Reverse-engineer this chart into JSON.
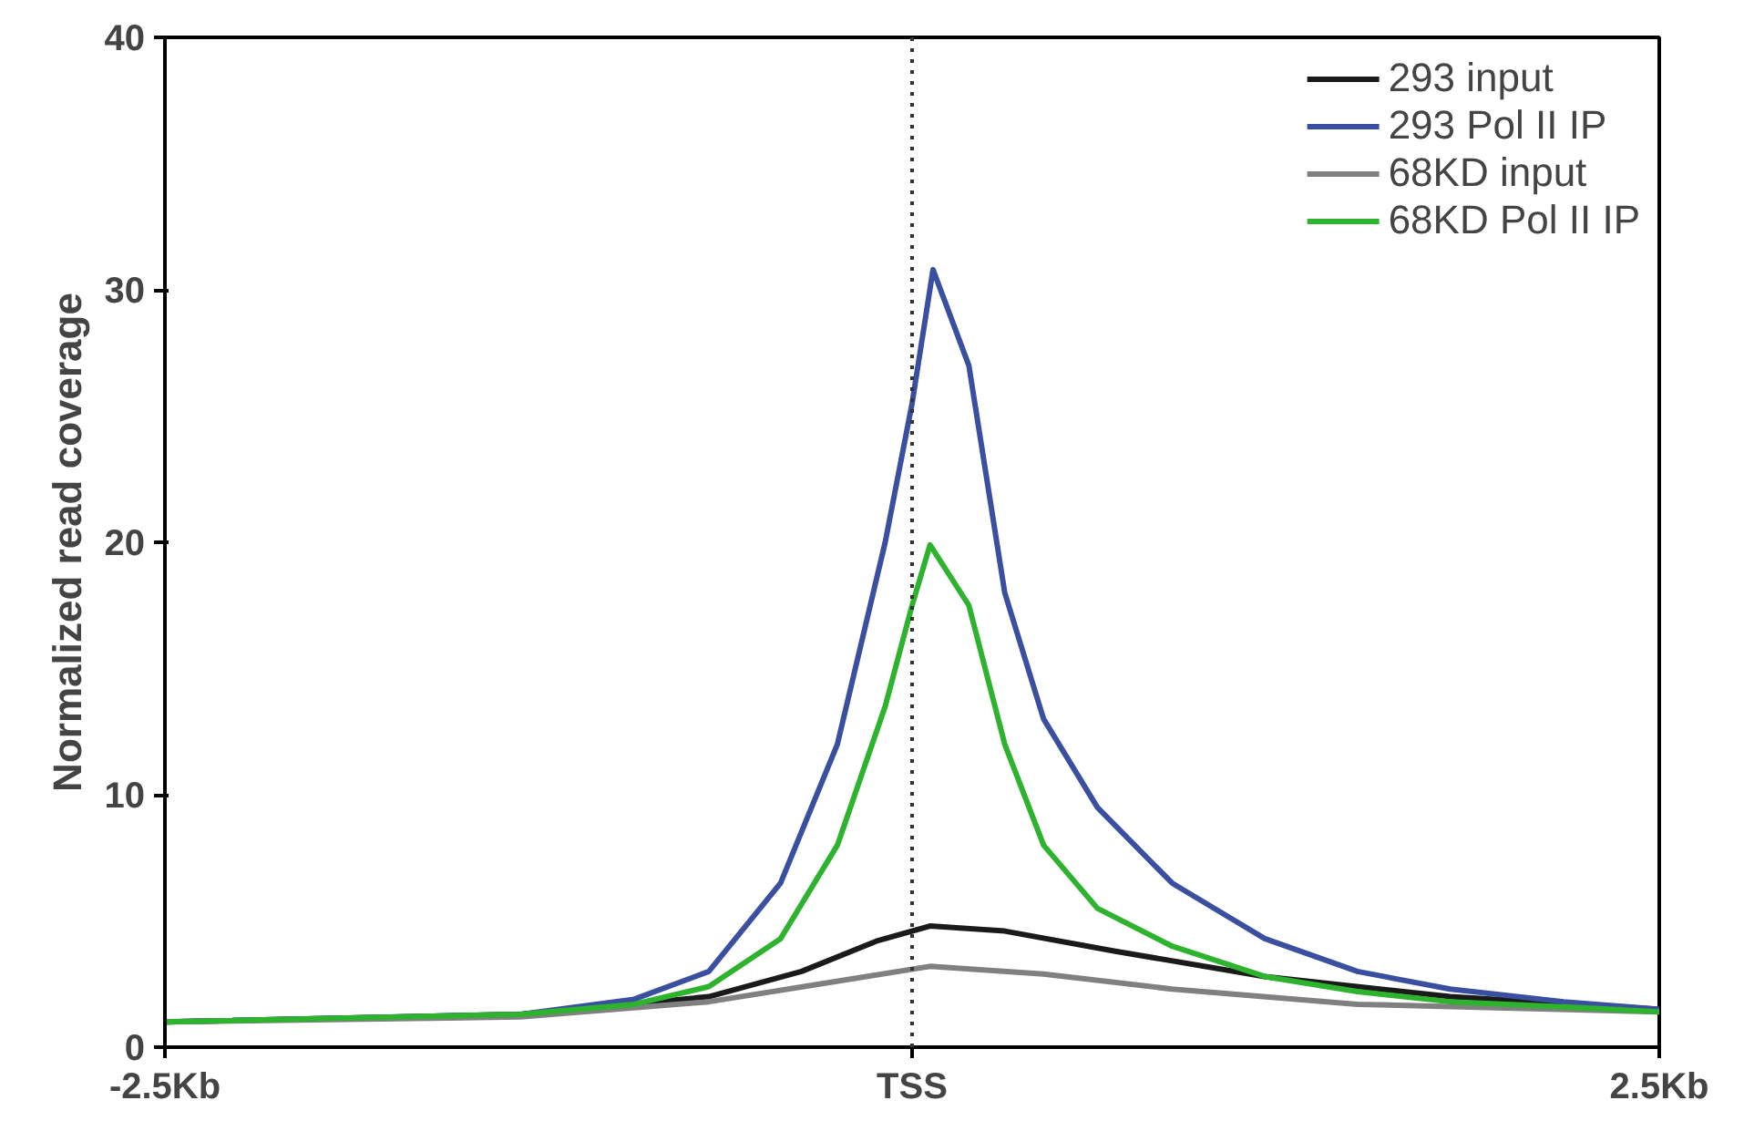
{
  "chart_data": {
    "type": "line",
    "ylabel": "Normalized read coverage",
    "xlim": [
      -2.5,
      2.5
    ],
    "xticks": [
      {
        "value": -2.5,
        "label": "-2.5Kb"
      },
      {
        "value": 0,
        "label": "TSS"
      },
      {
        "value": 2.5,
        "label": "2.5Kb"
      }
    ],
    "ylim": [
      0,
      40
    ],
    "yticks": [
      0,
      10,
      20,
      30,
      40
    ],
    "grid": false,
    "legend": "top right",
    "marker": "none",
    "line_style": "solid",
    "ref_lines": [
      {
        "axis": "x",
        "value": 0,
        "line_style": "dotted",
        "color": "#333333"
      }
    ],
    "series": [
      {
        "name": "293 input",
        "color": "#1a1a1a",
        "x": [
          -2.5,
          -1.31,
          -0.68,
          -0.37,
          -0.12,
          0.06,
          0.31,
          0.68,
          1.18,
          1.8,
          2.5
        ],
        "values": [
          1.0,
          1.3,
          2.0,
          3.0,
          4.2,
          4.8,
          4.6,
          3.8,
          2.8,
          2.0,
          1.5
        ]
      },
      {
        "name": "293 Pol II IP",
        "color": "#3b4fa0",
        "x": [
          -2.5,
          -1.31,
          -0.93,
          -0.68,
          -0.44,
          -0.25,
          -0.09,
          0,
          0.07,
          0.19,
          0.31,
          0.44,
          0.62,
          0.87,
          1.18,
          1.49,
          1.8,
          2.18,
          2.5
        ],
        "values": [
          1.0,
          1.3,
          1.9,
          3.0,
          6.5,
          12,
          20,
          25.5,
          30.8,
          27,
          18,
          13,
          9.5,
          6.5,
          4.3,
          3.0,
          2.3,
          1.8,
          1.5
        ]
      },
      {
        "name": "68KD input",
        "color": "#808080",
        "x": [
          -2.5,
          -1.31,
          -0.68,
          -0.31,
          0.06,
          0.44,
          0.87,
          1.49,
          2.5
        ],
        "values": [
          1.0,
          1.2,
          1.8,
          2.5,
          3.2,
          2.9,
          2.3,
          1.7,
          1.4
        ]
      },
      {
        "name": "68KD Pol II IP",
        "color": "#2db32d",
        "x": [
          -2.5,
          -1.31,
          -0.93,
          -0.68,
          -0.44,
          -0.25,
          -0.09,
          0,
          0.06,
          0.19,
          0.31,
          0.44,
          0.62,
          0.87,
          1.18,
          1.49,
          1.8,
          2.18,
          2.5
        ],
        "values": [
          1.0,
          1.3,
          1.7,
          2.4,
          4.3,
          8,
          13.5,
          17.5,
          19.9,
          17.5,
          12,
          8,
          5.5,
          4.0,
          2.8,
          2.2,
          1.8,
          1.6,
          1.4
        ]
      }
    ]
  }
}
